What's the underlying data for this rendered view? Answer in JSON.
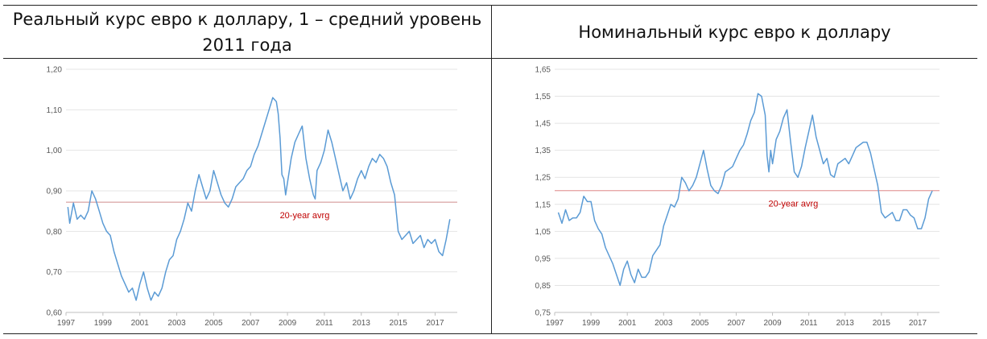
{
  "chart_data": [
    {
      "type": "line",
      "title": "Реальный курс евро к доллару, 1 – средний уровень 2011 года",
      "ylim": [
        0.6,
        1.2
      ],
      "yticks": [
        "1,20",
        "1,10",
        "1,00",
        "0,90",
        "0,80",
        "0,70",
        "0,60"
      ],
      "xlim": [
        1997,
        2018.2
      ],
      "xticks": [
        "1997",
        "1999",
        "2001",
        "2003",
        "2005",
        "2007",
        "2009",
        "2011",
        "2013",
        "2015",
        "2017"
      ],
      "reference_line": {
        "value": 0.872,
        "label": "20-year avrg"
      },
      "colors": {
        "line": "#5b9bd5",
        "reference": "#d9a3a3",
        "annotation": "#c00000"
      },
      "series": [
        {
          "x": [
            1997.1,
            1997.2,
            1997.4,
            1997.6,
            1997.8,
            1998.0,
            1998.2,
            1998.4,
            1998.6,
            1998.8,
            1999.0,
            1999.2,
            1999.4,
            1999.6,
            1999.8,
            2000.0,
            2000.2,
            2000.4,
            2000.6,
            2000.8,
            2001.0,
            2001.2,
            2001.4,
            2001.6,
            2001.8,
            2002.0,
            2002.2,
            2002.4,
            2002.6,
            2002.8,
            2003.0,
            2003.2,
            2003.4,
            2003.6,
            2003.8,
            2004.0,
            2004.2,
            2004.4,
            2004.6,
            2004.8,
            2005.0,
            2005.2,
            2005.4,
            2005.6,
            2005.8,
            2006.0,
            2006.2,
            2006.4,
            2006.6,
            2006.8,
            2007.0,
            2007.2,
            2007.4,
            2007.6,
            2007.8,
            2008.0,
            2008.2,
            2008.4,
            2008.5,
            2008.6,
            2008.7,
            2008.8,
            2008.9,
            2009.0,
            2009.2,
            2009.4,
            2009.6,
            2009.8,
            2010.0,
            2010.2,
            2010.4,
            2010.5,
            2010.6,
            2010.8,
            2011.0,
            2011.2,
            2011.4,
            2011.6,
            2011.8,
            2012.0,
            2012.2,
            2012.4,
            2012.6,
            2012.8,
            2013.0,
            2013.2,
            2013.4,
            2013.6,
            2013.8,
            2014.0,
            2014.2,
            2014.4,
            2014.6,
            2014.8,
            2015.0,
            2015.2,
            2015.4,
            2015.6,
            2015.8,
            2016.0,
            2016.2,
            2016.4,
            2016.6,
            2016.8,
            2017.0,
            2017.2,
            2017.4,
            2017.6,
            2017.8
          ],
          "values": [
            0.86,
            0.82,
            0.87,
            0.83,
            0.84,
            0.83,
            0.85,
            0.9,
            0.88,
            0.85,
            0.82,
            0.8,
            0.79,
            0.75,
            0.72,
            0.69,
            0.67,
            0.65,
            0.66,
            0.63,
            0.67,
            0.7,
            0.66,
            0.63,
            0.65,
            0.64,
            0.66,
            0.7,
            0.73,
            0.74,
            0.78,
            0.8,
            0.83,
            0.87,
            0.85,
            0.9,
            0.94,
            0.91,
            0.88,
            0.9,
            0.95,
            0.92,
            0.89,
            0.87,
            0.86,
            0.88,
            0.91,
            0.92,
            0.93,
            0.95,
            0.96,
            0.99,
            1.01,
            1.04,
            1.07,
            1.1,
            1.13,
            1.12,
            1.09,
            1.03,
            0.94,
            0.93,
            0.89,
            0.92,
            0.98,
            1.02,
            1.04,
            1.06,
            0.98,
            0.93,
            0.89,
            0.88,
            0.95,
            0.97,
            1.0,
            1.05,
            1.02,
            0.98,
            0.94,
            0.9,
            0.92,
            0.88,
            0.9,
            0.93,
            0.95,
            0.93,
            0.96,
            0.98,
            0.97,
            0.99,
            0.98,
            0.96,
            0.92,
            0.89,
            0.8,
            0.78,
            0.79,
            0.8,
            0.77,
            0.78,
            0.79,
            0.76,
            0.78,
            0.77,
            0.78,
            0.75,
            0.74,
            0.78,
            0.83
          ]
        }
      ]
    },
    {
      "type": "line",
      "title": "Номинальный курс евро к доллару",
      "ylim": [
        0.75,
        1.65
      ],
      "yticks": [
        "1,65",
        "1,55",
        "1,45",
        "1,35",
        "1,25",
        "1,15",
        "1,05",
        "0,95",
        "0,85",
        "0,75"
      ],
      "xlim": [
        1997,
        2018.2
      ],
      "xticks": [
        "1997",
        "1999",
        "2001",
        "2003",
        "2005",
        "2007",
        "2009",
        "2011",
        "2013",
        "2015",
        "2017"
      ],
      "reference_line": {
        "value": 1.201,
        "label": "20-year avrg"
      },
      "colors": {
        "line": "#5b9bd5",
        "reference": "#e7a7a7",
        "annotation": "#c00000"
      },
      "series": [
        {
          "x": [
            1997.2,
            1997.4,
            1997.6,
            1997.8,
            1998.0,
            1998.2,
            1998.4,
            1998.6,
            1998.8,
            1999.0,
            1999.2,
            1999.4,
            1999.6,
            1999.8,
            2000.0,
            2000.2,
            2000.4,
            2000.6,
            2000.8,
            2001.0,
            2001.2,
            2001.4,
            2001.6,
            2001.8,
            2002.0,
            2002.2,
            2002.4,
            2002.6,
            2002.8,
            2003.0,
            2003.2,
            2003.4,
            2003.6,
            2003.8,
            2004.0,
            2004.2,
            2004.4,
            2004.6,
            2004.8,
            2005.0,
            2005.2,
            2005.4,
            2005.6,
            2005.8,
            2006.0,
            2006.2,
            2006.4,
            2006.6,
            2006.8,
            2007.0,
            2007.2,
            2007.4,
            2007.6,
            2007.8,
            2008.0,
            2008.2,
            2008.4,
            2008.6,
            2008.7,
            2008.8,
            2008.9,
            2009.0,
            2009.2,
            2009.4,
            2009.6,
            2009.8,
            2010.0,
            2010.2,
            2010.4,
            2010.6,
            2010.8,
            2011.0,
            2011.2,
            2011.4,
            2011.6,
            2011.8,
            2012.0,
            2012.2,
            2012.4,
            2012.6,
            2012.8,
            2013.0,
            2013.2,
            2013.4,
            2013.6,
            2013.8,
            2014.0,
            2014.2,
            2014.4,
            2014.6,
            2014.8,
            2015.0,
            2015.2,
            2015.4,
            2015.6,
            2015.8,
            2016.0,
            2016.2,
            2016.4,
            2016.6,
            2016.8,
            2017.0,
            2017.2,
            2017.4,
            2017.6,
            2017.8
          ],
          "values": [
            1.12,
            1.08,
            1.13,
            1.09,
            1.1,
            1.1,
            1.12,
            1.18,
            1.16,
            1.16,
            1.09,
            1.06,
            1.04,
            0.99,
            0.96,
            0.93,
            0.89,
            0.85,
            0.91,
            0.94,
            0.89,
            0.86,
            0.91,
            0.88,
            0.88,
            0.9,
            0.96,
            0.98,
            1.0,
            1.07,
            1.11,
            1.15,
            1.14,
            1.17,
            1.25,
            1.23,
            1.2,
            1.22,
            1.25,
            1.3,
            1.35,
            1.28,
            1.22,
            1.2,
            1.19,
            1.22,
            1.27,
            1.28,
            1.29,
            1.32,
            1.35,
            1.37,
            1.41,
            1.46,
            1.49,
            1.56,
            1.55,
            1.48,
            1.33,
            1.27,
            1.35,
            1.3,
            1.39,
            1.42,
            1.47,
            1.5,
            1.38,
            1.27,
            1.25,
            1.29,
            1.36,
            1.42,
            1.48,
            1.4,
            1.35,
            1.3,
            1.32,
            1.26,
            1.25,
            1.3,
            1.31,
            1.32,
            1.3,
            1.33,
            1.36,
            1.37,
            1.38,
            1.38,
            1.34,
            1.28,
            1.22,
            1.12,
            1.1,
            1.11,
            1.12,
            1.09,
            1.09,
            1.13,
            1.13,
            1.11,
            1.1,
            1.06,
            1.06,
            1.1,
            1.17,
            1.2
          ]
        }
      ]
    }
  ]
}
